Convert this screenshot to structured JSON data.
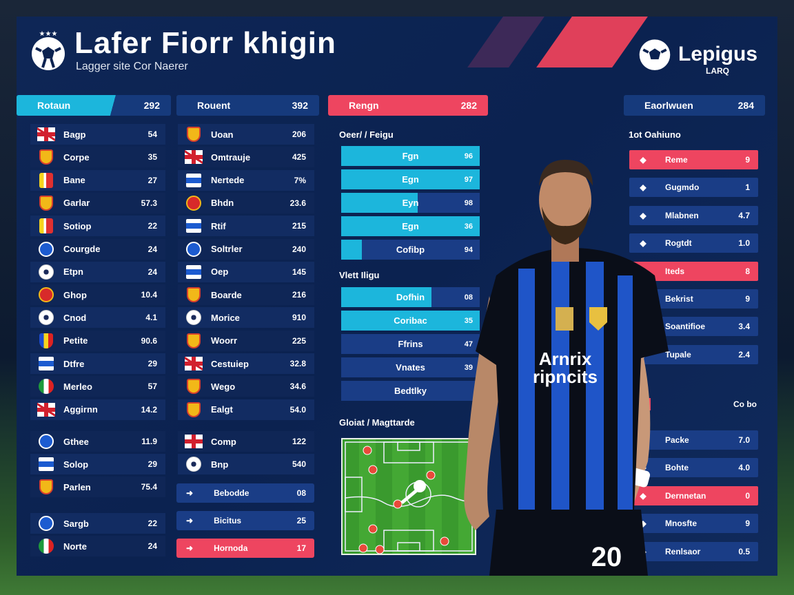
{
  "header": {
    "title": "Lafer Fiorr khigin",
    "subtitle": "Lagger site Cor Naerer",
    "logo_text": "Lepigus",
    "logo_sub": "LARQ"
  },
  "colors": {
    "accent_cyan": "#1cb6dc",
    "accent_red": "#ee4560",
    "panel": "#0e2656",
    "row": "#1a3d86"
  },
  "col1": {
    "header": {
      "label": "Rotaun",
      "value": "292"
    },
    "rows": [
      {
        "icon": "uk",
        "name": "Bagp",
        "value": "54"
      },
      {
        "icon": "shield",
        "name": "Corpe",
        "value": "35"
      },
      {
        "icon": "stripes",
        "name": "Bane",
        "value": "27"
      },
      {
        "icon": "shield",
        "name": "Garlar",
        "value": "57.3"
      },
      {
        "icon": "stripes",
        "name": "Sotiop",
        "value": "22"
      },
      {
        "icon": "bluec",
        "name": "Courgde",
        "value": "24"
      },
      {
        "icon": "ball",
        "name": "Etpn",
        "value": "24"
      },
      {
        "icon": "redc",
        "name": "Ghop",
        "value": "10.4"
      },
      {
        "icon": "ball",
        "name": "Cnod",
        "value": "4.1"
      },
      {
        "icon": "romania",
        "name": "Petite",
        "value": "90.6"
      },
      {
        "icon": "bluesq",
        "name": "Dtfre",
        "value": "29"
      },
      {
        "icon": "italy",
        "name": "Merleo",
        "value": "57"
      },
      {
        "icon": "uk",
        "name": "Aggirnn",
        "value": "14.2"
      },
      {
        "icon": "bluec",
        "name": "Gthee",
        "value": "11.9"
      },
      {
        "icon": "bluesq",
        "name": "Solop",
        "value": "29"
      },
      {
        "icon": "shield",
        "name": "Parlen",
        "value": "75.4"
      },
      {
        "icon": "bluec",
        "name": "Sargb",
        "value": "22"
      },
      {
        "icon": "italy",
        "name": "Norte",
        "value": "24"
      }
    ]
  },
  "col2": {
    "header": {
      "label": "Rouent",
      "value": "392"
    },
    "rows": [
      {
        "icon": "shield",
        "name": "Uoan",
        "value": "206"
      },
      {
        "icon": "uk",
        "name": "Omtrauje",
        "value": "425"
      },
      {
        "icon": "bluesq",
        "name": "Nertede",
        "value": "7%"
      },
      {
        "icon": "redc",
        "name": "Bhdn",
        "value": "23.6"
      },
      {
        "icon": "bluesq",
        "name": "Rtif",
        "value": "215"
      },
      {
        "icon": "bluec",
        "name": "Soltrler",
        "value": "240"
      },
      {
        "icon": "bluesq",
        "name": "Oep",
        "value": "145"
      },
      {
        "icon": "shield",
        "name": "Boarde",
        "value": "216"
      },
      {
        "icon": "ball",
        "name": "Morice",
        "value": "910"
      },
      {
        "icon": "shield",
        "name": "Woorr",
        "value": "225"
      },
      {
        "icon": "uk",
        "name": "Cestuiep",
        "value": "32.8"
      },
      {
        "icon": "shield",
        "name": "Wego",
        "value": "34.6"
      },
      {
        "icon": "shield",
        "name": "Ealgt",
        "value": "54.0"
      },
      {
        "icon": "cross",
        "name": "Comp",
        "value": "122"
      },
      {
        "icon": "ball",
        "name": "Bnp",
        "value": "540"
      }
    ],
    "buttons": [
      {
        "name": "Bebodde",
        "value": "08",
        "red": false
      },
      {
        "name": "Bicitus",
        "value": "25",
        "red": false
      },
      {
        "name": "Hornoda",
        "value": "17",
        "red": true
      }
    ]
  },
  "col3": {
    "header": {
      "label": "Rengn",
      "value": "282"
    },
    "group1_label": "Oeer/ / Feigu",
    "group1": [
      {
        "name": "Fgn",
        "value": "96",
        "fill": 100
      },
      {
        "name": "Egn",
        "value": "97",
        "fill": 100
      },
      {
        "name": "Eyn",
        "value": "98",
        "fill": 55
      },
      {
        "name": "Egn",
        "value": "36",
        "fill": 100
      },
      {
        "name": "Cofibp",
        "value": "94",
        "fill": 15
      }
    ],
    "group2_label": "Vlett Iligu",
    "group2": [
      {
        "name": "Dofhin",
        "value": "08",
        "fill": 65
      },
      {
        "name": "Coribac",
        "value": "35",
        "fill": 100
      },
      {
        "name": "Ffrins",
        "value": "47",
        "fill": 0
      },
      {
        "name": "Vnates",
        "value": "39",
        "fill": 0
      },
      {
        "name": "Bedtlky",
        "value": "",
        "fill": 0
      }
    ],
    "pitch_label": "Gloiat / Magttarde"
  },
  "col4": {
    "header": {
      "label": "Eaorlwuen",
      "value": "284"
    },
    "group1_label": "1ot Oahiuno",
    "group1": [
      {
        "name": "Reme",
        "value": "9",
        "red": true
      },
      {
        "name": "Gugmdo",
        "value": "1",
        "red": false
      },
      {
        "name": "Mlabnen",
        "value": "4.7",
        "red": false
      },
      {
        "name": "Rogtdt",
        "value": "1.0",
        "red": false
      },
      {
        "name": "Iteds",
        "value": "8",
        "red": true
      },
      {
        "name": "Bekrist",
        "value": "9",
        "red": false
      },
      {
        "name": "Soantifioe",
        "value": "3.4",
        "red": false
      },
      {
        "name": "Tupale",
        "value": "2.4",
        "red": false
      }
    ],
    "group2_label": "Cl",
    "group2_value": "Co bo",
    "group2": [
      {
        "name": "Packe",
        "value": "7.0",
        "red": false
      },
      {
        "name": "Bohte",
        "value": "4.0",
        "red": false
      },
      {
        "name": "Dernnetan",
        "value": "0",
        "red": true
      },
      {
        "name": "Mnosfte",
        "value": "9",
        "red": false
      },
      {
        "name": "Renlsaor",
        "value": "0.5",
        "red": false
      }
    ]
  },
  "player": {
    "number": "20",
    "sponsor_line1": "Arnrix",
    "sponsor_line2": "ripncits"
  }
}
